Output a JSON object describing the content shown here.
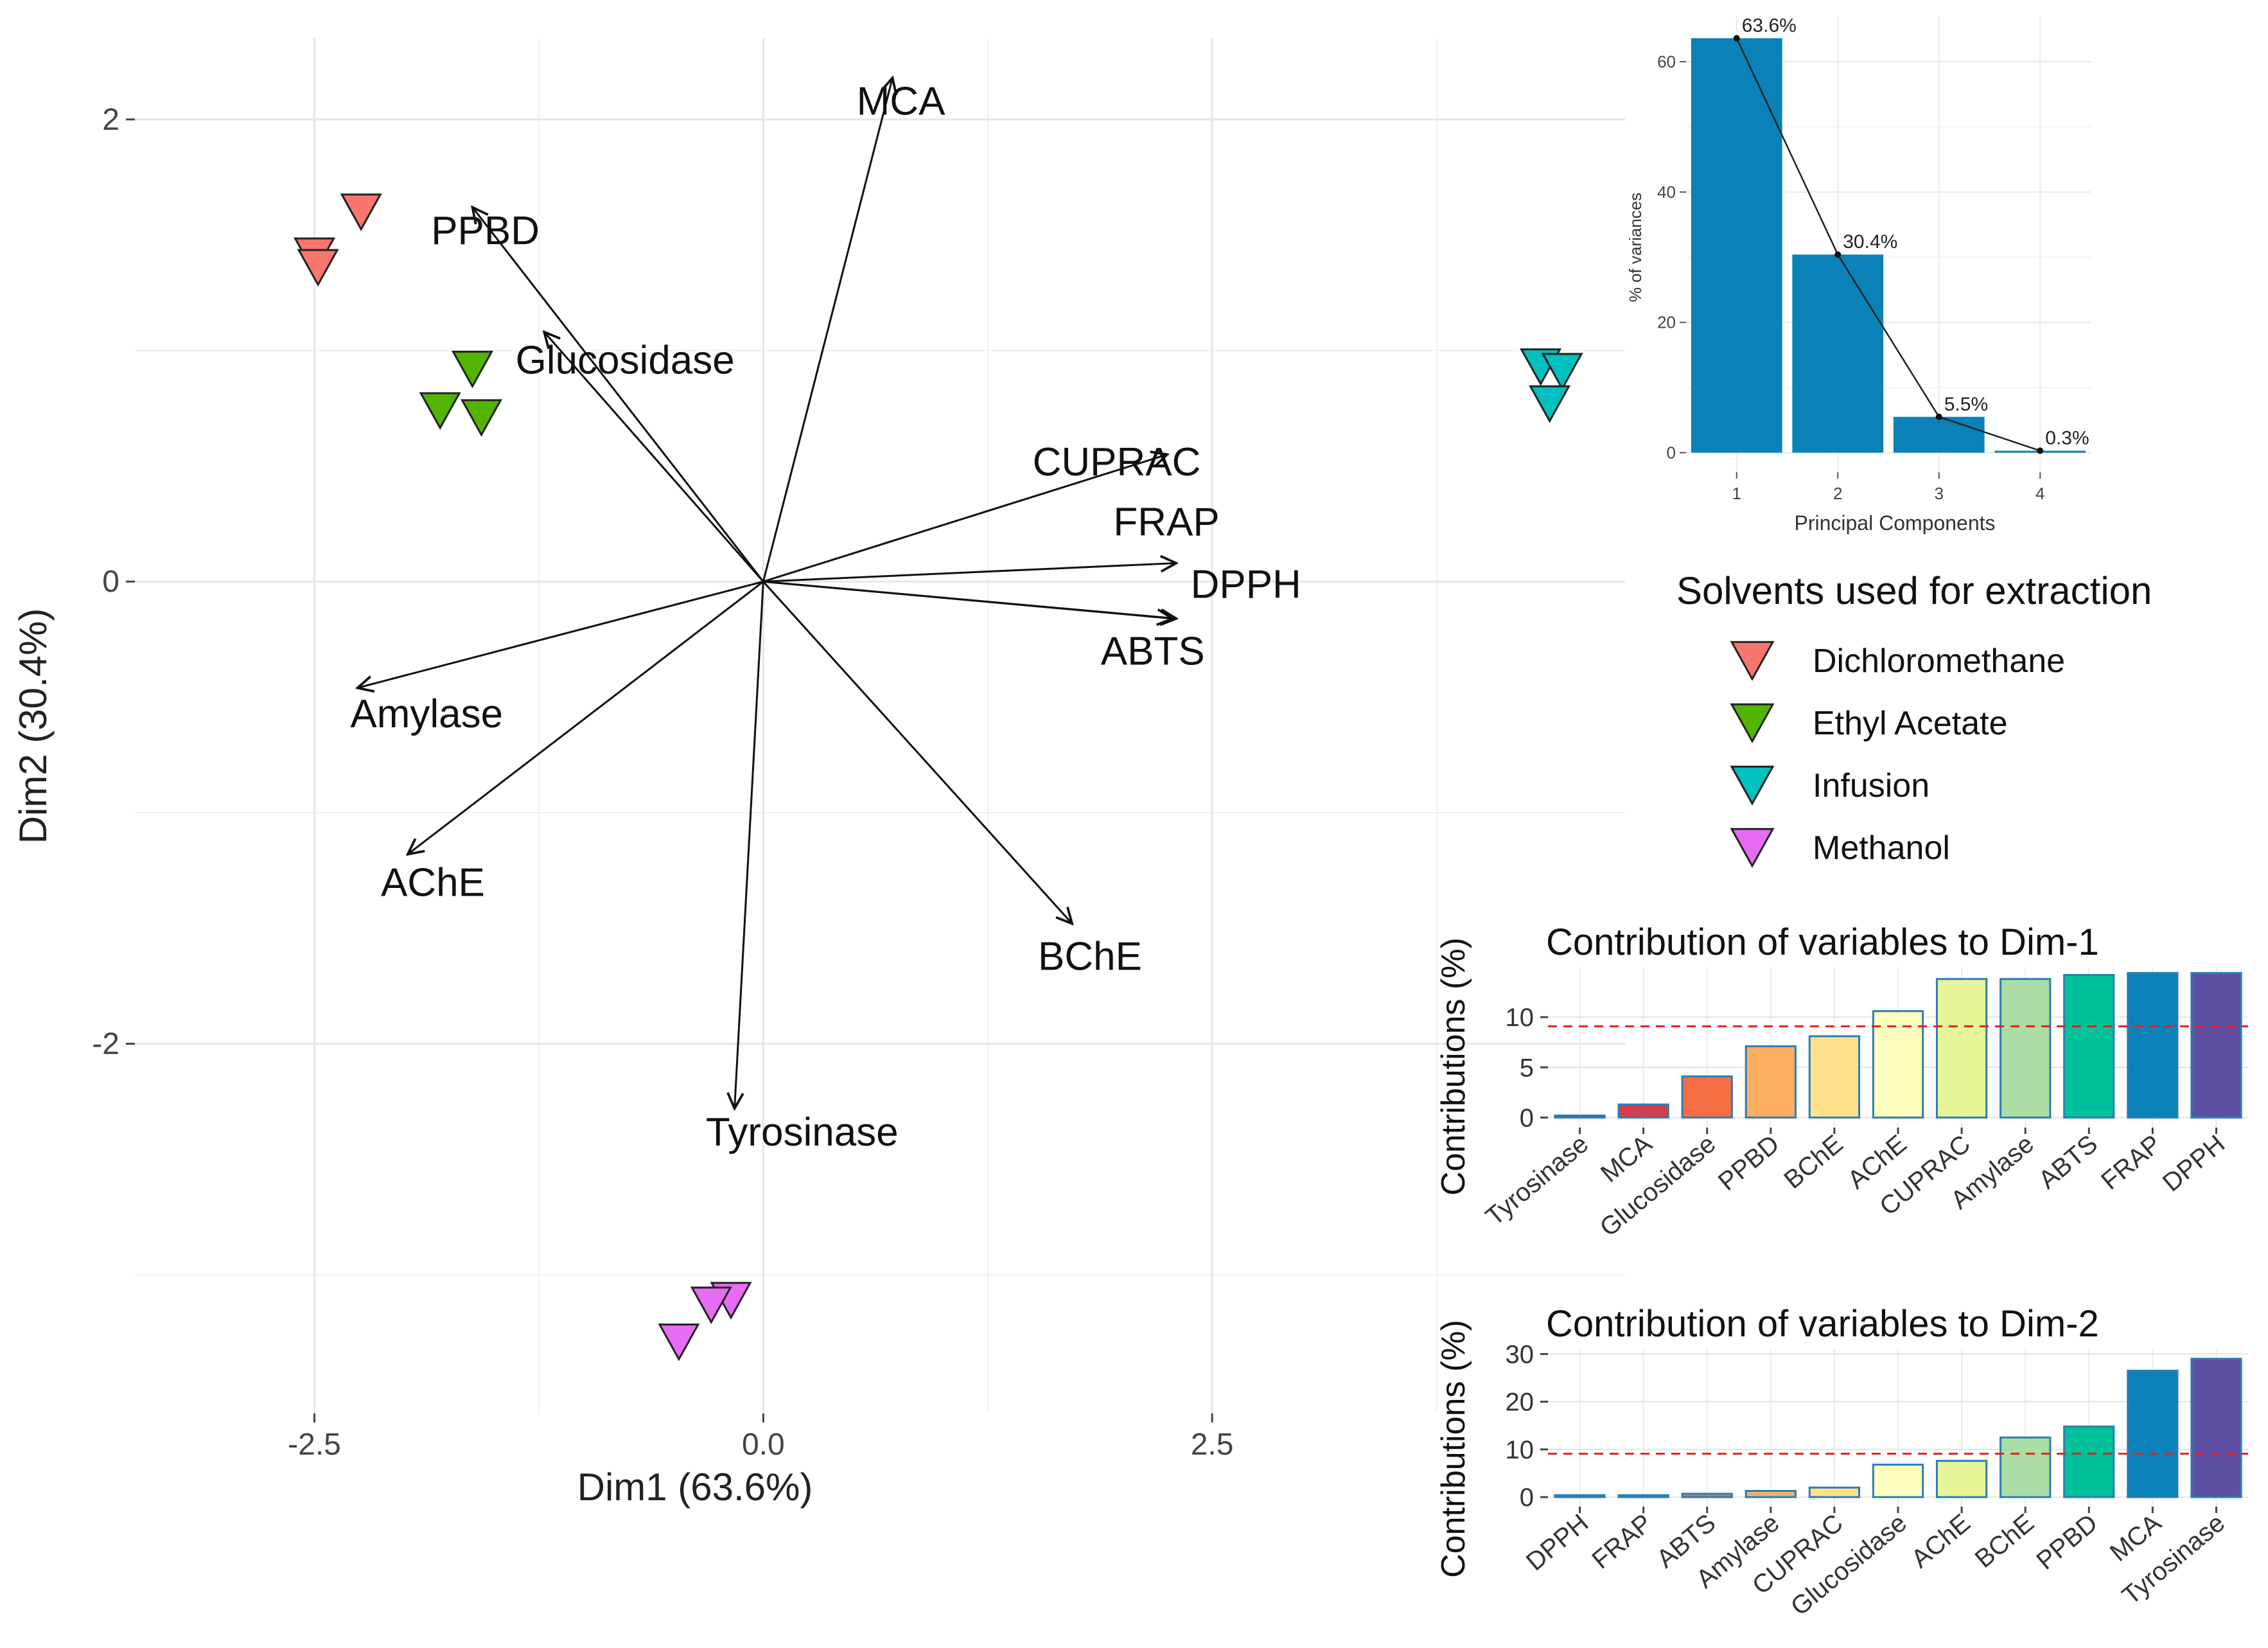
{
  "chart_data": [
    {
      "id": "biplot",
      "type": "scatter",
      "title": "",
      "xlabel": "Dim1 (63.6%)",
      "ylabel": "Dim2 (30.4%)",
      "xlim": [
        -3.5,
        4.8
      ],
      "ylim": [
        -3.6,
        2.35
      ],
      "x_ticks": [
        -2.5,
        0.0,
        2.5
      ],
      "x_tick_labels": [
        "-2.5",
        "0.0",
        "2.5"
      ],
      "y_ticks": [
        2,
        0,
        -2
      ],
      "y_tick_labels": [
        "2",
        "0",
        "-2"
      ],
      "grid": true,
      "variables": [
        {
          "name": "MCA",
          "x": 0.72,
          "y": 2.18,
          "label_x": 0.52,
          "label_y": 2.02
        },
        {
          "name": "PPBD",
          "x": -1.62,
          "y": 1.62,
          "label_x": -1.85,
          "label_y": 1.46
        },
        {
          "name": "Glucosidase",
          "x": -1.22,
          "y": 1.08,
          "label_x": -1.38,
          "label_y": 0.9
        },
        {
          "name": "CUPRAC",
          "x": 2.25,
          "y": 0.55,
          "label_x": 1.5,
          "label_y": 0.46
        },
        {
          "name": "FRAP",
          "x": 2.3,
          "y": 0.08,
          "label_x": 1.95,
          "label_y": 0.2
        },
        {
          "name": "DPPH",
          "x": 2.3,
          "y": -0.16,
          "label_x": 2.38,
          "label_y": -0.07
        },
        {
          "name": "ABTS",
          "x": 2.28,
          "y": -0.16,
          "label_x": 1.88,
          "label_y": -0.36
        },
        {
          "name": "Amylase",
          "x": -2.26,
          "y": -0.46,
          "label_x": -2.3,
          "label_y": -0.63
        },
        {
          "name": "AChE",
          "x": -1.98,
          "y": -1.18,
          "label_x": -2.13,
          "label_y": -1.36
        },
        {
          "name": "BChE",
          "x": 1.72,
          "y": -1.48,
          "label_x": 1.53,
          "label_y": -1.68
        },
        {
          "name": "Tyrosinase",
          "x": -0.16,
          "y": -2.28,
          "label_x": -0.32,
          "label_y": -2.44
        }
      ],
      "groups": [
        {
          "name": "Dichloromethane",
          "color": "#F8766D",
          "points": [
            {
              "x": -2.24,
              "y": 1.6
            },
            {
              "x": -2.5,
              "y": 1.41
            },
            {
              "x": -2.48,
              "y": 1.36
            }
          ]
        },
        {
          "name": "Ethyl Acetate",
          "color": "#53B400",
          "points": [
            {
              "x": -1.62,
              "y": 0.92
            },
            {
              "x": -1.8,
              "y": 0.74
            },
            {
              "x": -1.57,
              "y": 0.71
            }
          ]
        },
        {
          "name": "Infusion",
          "color": "#00C0C0",
          "points": [
            {
              "x": 4.33,
              "y": 0.93
            },
            {
              "x": 4.45,
              "y": 0.91
            },
            {
              "x": 4.38,
              "y": 0.77
            }
          ]
        },
        {
          "name": "Methanol",
          "color": "#E76BF3",
          "points": [
            {
              "x": -0.18,
              "y": -3.11
            },
            {
              "x": -0.29,
              "y": -3.13
            },
            {
              "x": -0.47,
              "y": -3.29
            }
          ]
        }
      ]
    },
    {
      "id": "scree",
      "type": "bar",
      "title": "",
      "xlabel": "Principal Components",
      "ylabel": "% of variances",
      "categories": [
        "1",
        "2",
        "3",
        "4"
      ],
      "values": [
        63.6,
        30.4,
        5.5,
        0.3
      ],
      "data_labels": [
        "63.6%",
        "30.4%",
        "5.5%",
        "0.3%"
      ],
      "ylim": [
        -3,
        67
      ],
      "y_ticks": [
        0,
        20,
        40,
        60
      ],
      "y_tick_labels": [
        "0",
        "20",
        "40",
        "60"
      ],
      "color": "#0a82b8"
    },
    {
      "id": "contrib-dim1",
      "type": "bar",
      "title": "Contribution of variables to Dim-1",
      "xlabel": "",
      "ylabel": "Contributions (%)",
      "categories": [
        "Tyrosinase",
        "MCA",
        "Glucosidase",
        "PPBD",
        "BChE",
        "AChE",
        "CUPRAC",
        "Amylase",
        "ABTS",
        "FRAP",
        "DPPH"
      ],
      "values": [
        0.2,
        1.3,
        4.1,
        7.1,
        8.1,
        10.6,
        13.8,
        13.8,
        14.2,
        14.4,
        14.4
      ],
      "colors": [
        "#9E0142",
        "#D53E4F",
        "#F46D43",
        "#FDAE61",
        "#FEE08B",
        "#FFFFBF",
        "#E6F598",
        "#ABDDA4",
        "#00C19A",
        "#0A82B8",
        "#5E4FA2"
      ],
      "reference_line": 9.09,
      "ylim": [
        -1,
        15
      ],
      "y_ticks": [
        0,
        5,
        10
      ],
      "y_tick_labels": [
        "0",
        "5",
        "10"
      ]
    },
    {
      "id": "contrib-dim2",
      "type": "bar",
      "title": "Contribution of variables to Dim-2",
      "xlabel": "",
      "ylabel": "Contributions (%)",
      "categories": [
        "DPPH",
        "FRAP",
        "ABTS",
        "Amylase",
        "CUPRAC",
        "Glucosidase",
        "AChE",
        "BChE",
        "PPBD",
        "MCA",
        "Tyrosinase"
      ],
      "values": [
        0.1,
        0.3,
        0.7,
        1.3,
        2.0,
        6.8,
        7.6,
        12.5,
        14.8,
        26.5,
        29.0
      ],
      "colors": [
        "#9E0142",
        "#D53E4F",
        "#F46D43",
        "#FDAE61",
        "#FEE08B",
        "#FFFFBF",
        "#E6F598",
        "#ABDDA4",
        "#00C19A",
        "#0A82B8",
        "#5E4FA2"
      ],
      "reference_line": 9.09,
      "ylim": [
        -2,
        31
      ],
      "y_ticks": [
        0,
        10,
        20,
        30
      ],
      "y_tick_labels": [
        "0",
        "10",
        "20",
        "30"
      ]
    }
  ],
  "legend": {
    "title": "Solvents used for extraction",
    "items": [
      {
        "label": "Dichloromethane",
        "color": "#F8766D"
      },
      {
        "label": "Ethyl Acetate",
        "color": "#53B400"
      },
      {
        "label": "Infusion",
        "color": "#00C0C0"
      },
      {
        "label": "Methanol",
        "color": "#E76BF3"
      }
    ]
  }
}
